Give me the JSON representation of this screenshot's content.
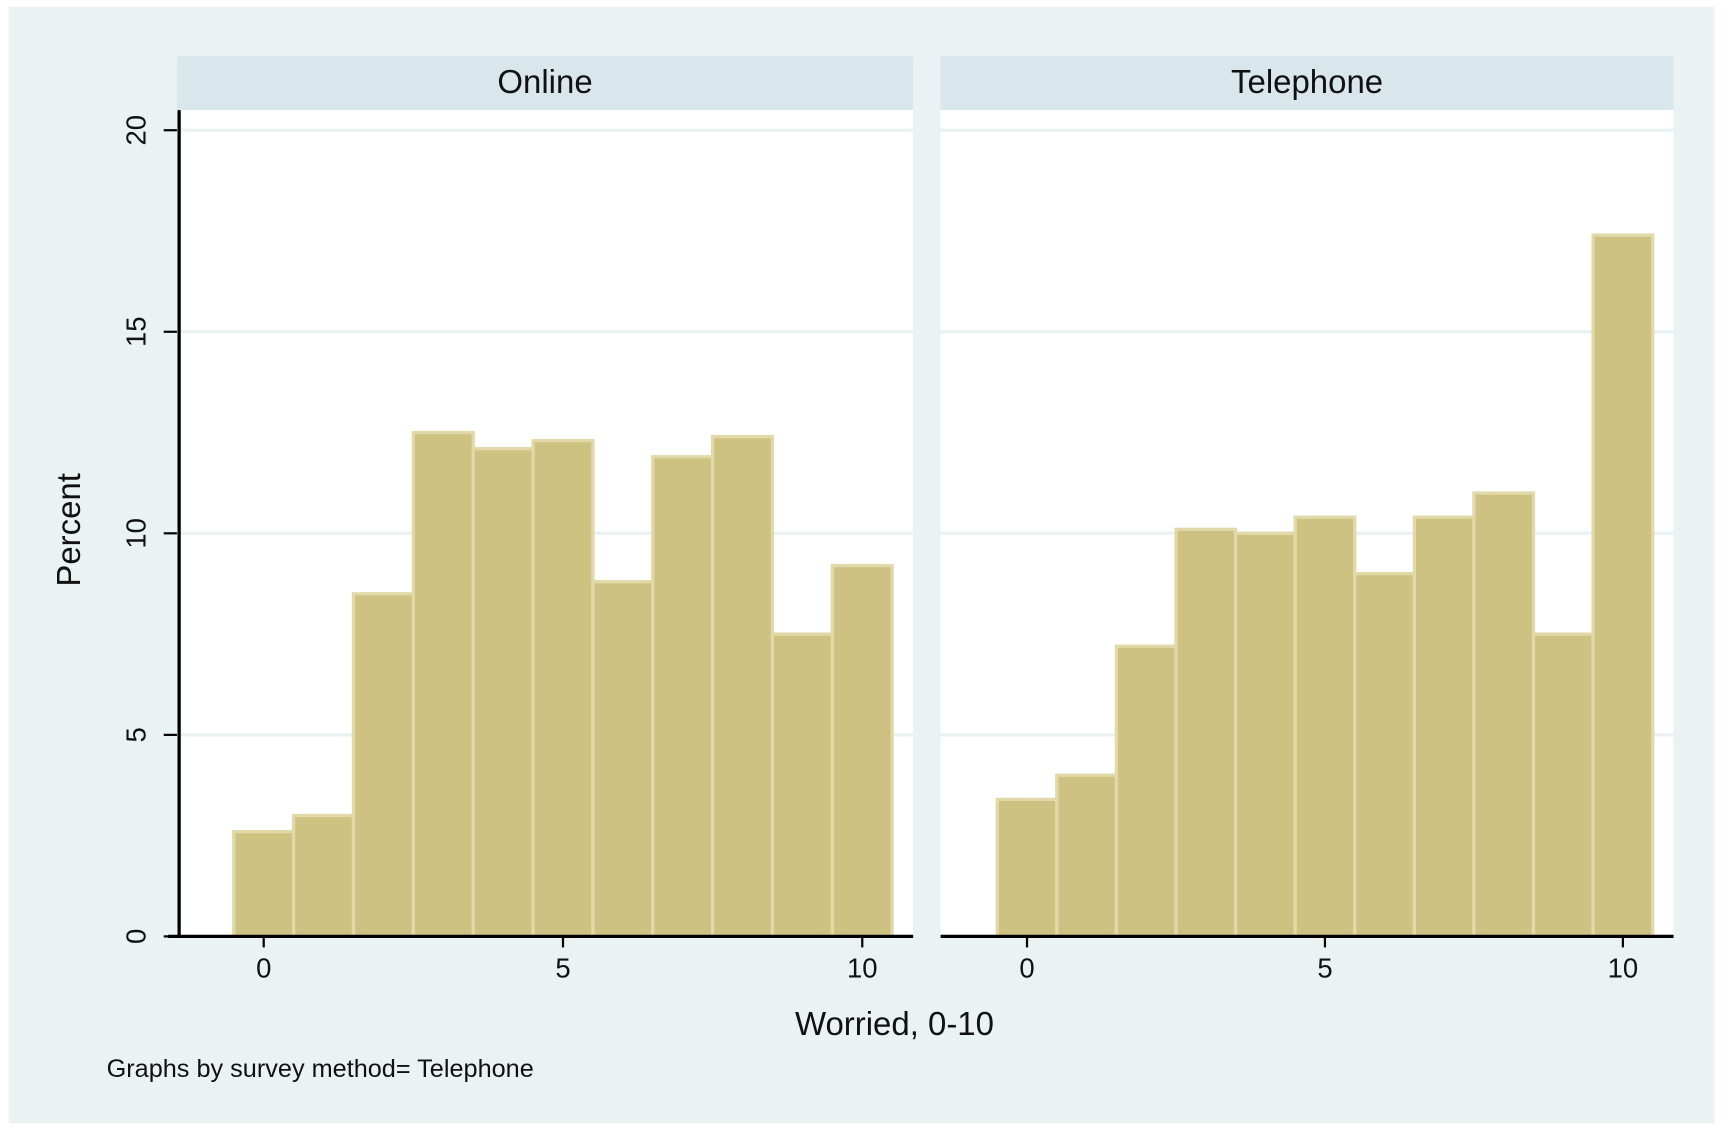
{
  "axis_labels": {
    "x": "Worried, 0-10",
    "y": "Percent"
  },
  "note": "Graphs by survey method= Telephone",
  "chart_data": [
    {
      "type": "histogram",
      "title": "Online",
      "bins": [
        -0.5,
        0.5,
        1.5,
        2.5,
        3.5,
        4.5,
        5.5,
        6.5,
        7.5,
        8.5,
        9.5,
        10.5
      ],
      "values": [
        2.6,
        3.0,
        8.5,
        12.5,
        12.1,
        12.3,
        8.8,
        11.9,
        12.4,
        7.5,
        9.2
      ],
      "color": "#cdc282",
      "xlim": [
        -1.45,
        10.85
      ],
      "ylim": [
        0,
        20.5
      ],
      "xticks": [
        0,
        5,
        10
      ],
      "yticks": [
        0,
        5,
        10,
        15,
        20
      ],
      "grid": true
    },
    {
      "type": "histogram",
      "title": "Telephone",
      "bins": [
        -0.5,
        0.5,
        1.5,
        2.5,
        3.5,
        4.5,
        5.5,
        6.5,
        7.5,
        8.5,
        9.5,
        10.5
      ],
      "values": [
        3.4,
        4.0,
        7.2,
        10.1,
        10.0,
        10.4,
        9.0,
        10.4,
        11.0,
        7.5,
        17.4
      ],
      "color": "#cdc282",
      "xlim": [
        -1.45,
        10.85
      ],
      "ylim": [
        0,
        20.5
      ],
      "xticks": [
        0,
        5,
        10
      ],
      "yticks": [
        0,
        5,
        10,
        15,
        20
      ],
      "grid": true
    }
  ]
}
